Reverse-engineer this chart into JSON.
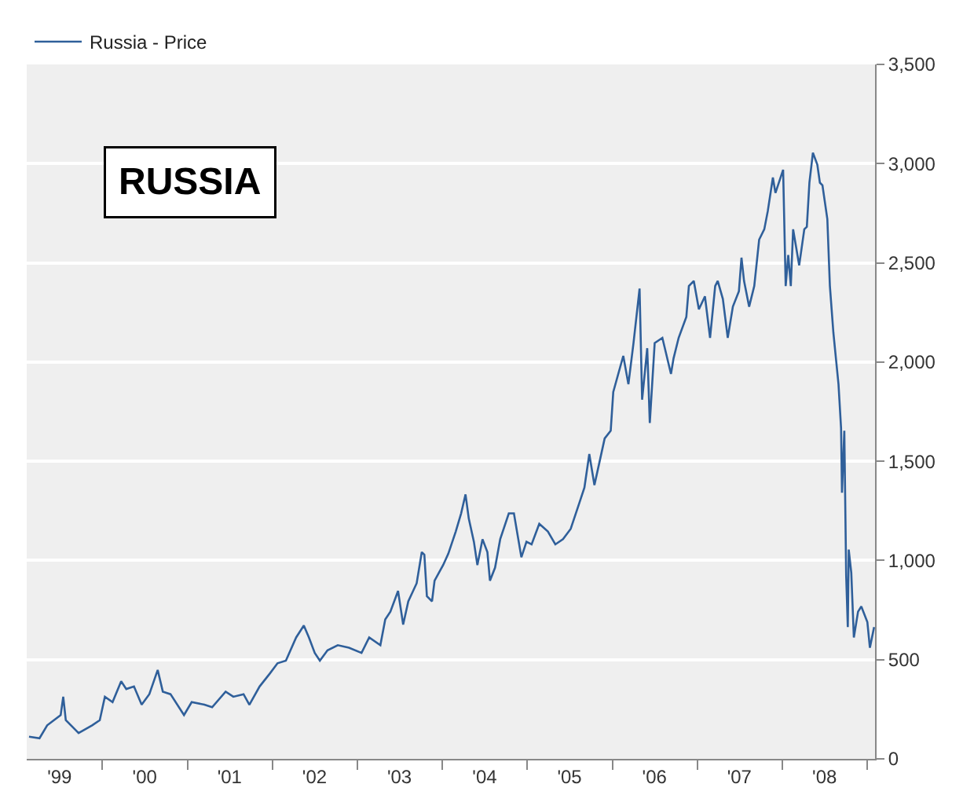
{
  "chart_data": {
    "type": "line",
    "title": "RUSSIA",
    "x": [
      "1999-02-20",
      "1999-04-06",
      "1999-05-09",
      "1999-07-06",
      "1999-07-17",
      "1999-07-28",
      "1999-09-21",
      "1999-11-18",
      "1999-12-21",
      "2000-01-12",
      "2000-02-14",
      "2000-03-22",
      "2000-04-13",
      "2000-05-16",
      "2000-06-18",
      "2000-07-21",
      "2000-08-26",
      "2000-09-17",
      "2000-10-20",
      "2000-12-17",
      "2001-01-19",
      "2001-03-15",
      "2001-04-17",
      "2001-06-14",
      "2001-07-17",
      "2001-08-30",
      "2001-09-24",
      "2001-11-07",
      "2001-12-21",
      "2002-01-23",
      "2002-02-28",
      "2002-04-13",
      "2002-05-16",
      "2002-06-07",
      "2002-07-02",
      "2002-07-24",
      "2002-08-26",
      "2002-10-09",
      "2002-11-26",
      "2003-01-19",
      "2003-02-21",
      "2003-04-10",
      "2003-05-01",
      "2003-05-23",
      "2003-06-25",
      "2003-07-17",
      "2003-08-08",
      "2003-09-13",
      "2003-10-05",
      "2003-10-16",
      "2003-10-27",
      "2003-11-18",
      "2003-11-29",
      "2004-01-05",
      "2004-01-27",
      "2004-02-28",
      "2004-03-22",
      "2004-04-10",
      "2004-04-24",
      "2004-05-16",
      "2004-05-31",
      "2004-06-22",
      "2004-07-13",
      "2004-07-24",
      "2004-08-15",
      "2004-09-06",
      "2004-10-13",
      "2004-11-04",
      "2004-12-06",
      "2004-12-28",
      "2005-01-19",
      "2005-02-21",
      "2005-03-30",
      "2005-05-01",
      "2005-06-03",
      "2005-07-06",
      "2005-08-12",
      "2005-09-03",
      "2005-09-24",
      "2005-10-16",
      "2005-11-07",
      "2005-11-29",
      "2005-12-25",
      "2006-01-05",
      "2006-02-17",
      "2006-03-11",
      "2006-04-02",
      "2006-04-28",
      "2006-05-09",
      "2006-05-31",
      "2006-06-11",
      "2006-07-02",
      "2006-08-04",
      "2006-09-10",
      "2006-09-21",
      "2006-10-13",
      "2006-11-15",
      "2006-11-26",
      "2006-12-17",
      "2007-01-08",
      "2007-02-03",
      "2007-02-25",
      "2007-03-19",
      "2007-03-30",
      "2007-04-21",
      "2007-05-12",
      "2007-06-03",
      "2007-06-29",
      "2007-07-10",
      "2007-07-21",
      "2007-08-12",
      "2007-09-03",
      "2007-09-24",
      "2007-10-16",
      "2007-10-31",
      "2007-11-22",
      "2007-12-03",
      "2008-01-05",
      "2008-01-16",
      "2008-01-27",
      "2008-02-07",
      "2008-02-17",
      "2008-03-14",
      "2008-04-05",
      "2008-04-16",
      "2008-04-27",
      "2008-05-12",
      "2008-05-31",
      "2008-06-11",
      "2008-06-22",
      "2008-07-13",
      "2008-07-24",
      "2008-08-08",
      "2008-08-19",
      "2008-08-30",
      "2008-09-10",
      "2008-09-14",
      "2008-09-24",
      "2008-10-02",
      "2008-10-09",
      "2008-10-13",
      "2008-10-24",
      "2008-11-04",
      "2008-11-22",
      "2008-12-06",
      "2009-01-01",
      "2009-01-12",
      "2009-01-30"
    ],
    "series": [
      {
        "name": "Russia - Price",
        "color": "#2f5f9a",
        "values": [
          112,
          104,
          169,
          221,
          313,
          195,
          130,
          169,
          195,
          313,
          286,
          391,
          352,
          365,
          273,
          326,
          448,
          339,
          326,
          221,
          286,
          273,
          260,
          339,
          313,
          326,
          273,
          365,
          430,
          482,
          495,
          612,
          672,
          612,
          534,
          495,
          547,
          573,
          560,
          534,
          612,
          573,
          703,
          742,
          846,
          677,
          794,
          885,
          1042,
          1029,
          820,
          794,
          898,
          977,
          1034,
          1146,
          1237,
          1333,
          1211,
          1094,
          977,
          1107,
          1042,
          898,
          964,
          1107,
          1237,
          1237,
          1016,
          1094,
          1081,
          1185,
          1146,
          1081,
          1107,
          1159,
          1289,
          1367,
          1536,
          1380,
          1497,
          1615,
          1654,
          1849,
          2031,
          1888,
          2096,
          2370,
          1810,
          2070,
          1693,
          2096,
          2122,
          1940,
          2018,
          2122,
          2227,
          2383,
          2409,
          2266,
          2331,
          2122,
          2383,
          2409,
          2318,
          2122,
          2279,
          2357,
          2526,
          2409,
          2279,
          2383,
          2617,
          2669,
          2760,
          2930,
          2852,
          2969,
          2383,
          2539,
          2383,
          2669,
          2487,
          2669,
          2682,
          2904,
          3055,
          2995,
          2904,
          2891,
          2721,
          2383,
          2148,
          2018,
          1888,
          1667,
          1341,
          1654,
          924,
          664,
          1055,
          938,
          612,
          742,
          768,
          690,
          560,
          664
        ]
      }
    ],
    "xlim": [
      "1999-02-10",
      "2009-02-03"
    ],
    "xticks": [
      {
        "value": "1999-07-01",
        "label": "'99"
      },
      {
        "value": "2000-01-01",
        "label": null
      },
      {
        "value": "2000-07-01",
        "label": "'00"
      },
      {
        "value": "2001-01-01",
        "label": null
      },
      {
        "value": "2001-07-01",
        "label": "'01"
      },
      {
        "value": "2002-01-01",
        "label": null
      },
      {
        "value": "2002-07-01",
        "label": "'02"
      },
      {
        "value": "2003-01-01",
        "label": null
      },
      {
        "value": "2003-07-01",
        "label": "'03"
      },
      {
        "value": "2004-01-01",
        "label": null
      },
      {
        "value": "2004-07-01",
        "label": "'04"
      },
      {
        "value": "2005-01-01",
        "label": null
      },
      {
        "value": "2005-07-01",
        "label": "'05"
      },
      {
        "value": "2006-01-01",
        "label": null
      },
      {
        "value": "2006-07-01",
        "label": "'06"
      },
      {
        "value": "2007-01-01",
        "label": null
      },
      {
        "value": "2007-07-01",
        "label": "'07"
      },
      {
        "value": "2008-01-01",
        "label": null
      },
      {
        "value": "2008-07-01",
        "label": "'08"
      },
      {
        "value": "2009-01-01",
        "label": null
      }
    ],
    "ylim": [
      0,
      3500
    ],
    "yticks": [
      0,
      500,
      {
        "value": 1000,
        "label": "1,000"
      },
      {
        "value": 1500,
        "label": "1,500"
      },
      {
        "value": 2000,
        "label": "2,000"
      },
      {
        "value": 2500,
        "label": "2,500"
      },
      {
        "value": 3000,
        "label": "3,000"
      },
      {
        "value": 3500,
        "label": "3,500"
      }
    ],
    "grid": "y",
    "legend": "top left",
    "line_style": "solid",
    "marker": "none"
  }
}
